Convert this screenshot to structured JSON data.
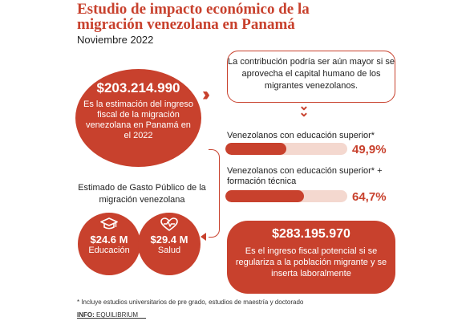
{
  "header": {
    "title": "Estudio de impacto económico de la migración venezolana en Panamá",
    "date": "Noviembre 2022"
  },
  "main_stat": {
    "amount": "$203.214.990",
    "description": "Es la estimación del ingreso fiscal de la migración venezolana en Panamá en el 2022"
  },
  "callout": {
    "text": "La contribución podría ser aún mayor si se aprovecha el capital humano de los migrantes venezolanos."
  },
  "education_bars": [
    {
      "label": "Venezolanos con educación superior*",
      "value_text": "49,9%",
      "value": 49.9
    },
    {
      "label": "Venezolanos con educación superior* + formación técnica",
      "value_text": "64,7%",
      "value": 64.7
    }
  ],
  "gasto": {
    "title": "Estimado de Gasto Público de la migración venezolana",
    "items": [
      {
        "amount": "$24.6 M",
        "label": "Educación",
        "icon": "graduation-cap-icon"
      },
      {
        "amount": "$29.4 M",
        "label": "Salud",
        "icon": "heart-pulse-icon"
      }
    ]
  },
  "potential": {
    "amount": "$283.195.970",
    "description": "Es el ingreso fiscal potencial si se regulariza a la población migrante y se inserta laboralmente"
  },
  "footer": {
    "footnote": "* Incluye estudios universitarios de pre grado, estudios de maestría y doctorado",
    "source_label": "INFO:",
    "source": "EQUILIBRIUM"
  },
  "colors": {
    "accent": "#c8412d",
    "bar_track": "#f4d8cf"
  }
}
